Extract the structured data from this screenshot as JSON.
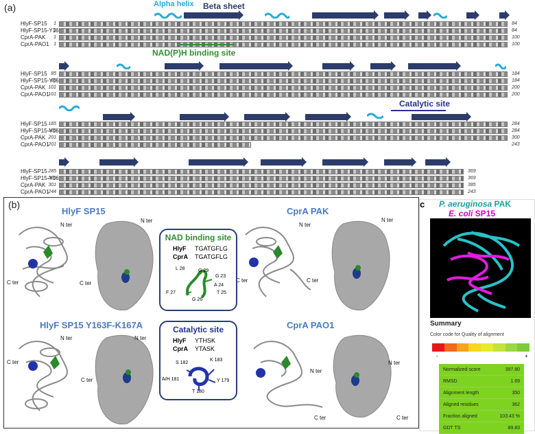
{
  "panel_a": {
    "label": "(a)",
    "headers": {
      "alpha_helix": "Alpha helix",
      "beta_sheet": "Beta sheet",
      "nad_binding": "NAD(P)H binding site",
      "catalytic": "Catalytic site"
    },
    "blocks": [
      {
        "rows": [
          {
            "name": "HlyF-SP15",
            "start": "1",
            "end": "84"
          },
          {
            "name": "HlyF-SP15-Y163F-K167A",
            "start": "1",
            "end": "84"
          },
          {
            "name": "CprA-PAK",
            "start": "1",
            "end": "100"
          },
          {
            "name": "CprA-PAO1",
            "start": "1",
            "end": "100"
          }
        ]
      },
      {
        "rows": [
          {
            "name": "HlyF-SP15",
            "start": "85",
            "end": "184"
          },
          {
            "name": "HlyF-SP15-Y163F-K167A",
            "start": "85",
            "end": "184"
          },
          {
            "name": "CprA-PAK",
            "start": "101",
            "end": "200"
          },
          {
            "name": "CprA-PAO1",
            "start": "101",
            "end": "200"
          }
        ]
      },
      {
        "rows": [
          {
            "name": "HlyF-SP15",
            "start": "185",
            "end": "284"
          },
          {
            "name": "HlyF-SP15-Y163F-K167A",
            "start": "185",
            "end": "284"
          },
          {
            "name": "CprA-PAK",
            "start": "201",
            "end": "300"
          },
          {
            "name": "CprA-PAO1",
            "start": "201",
            "end": "243"
          }
        ]
      },
      {
        "rows": [
          {
            "name": "HlyF-SP15",
            "start": "285",
            "end": "369"
          },
          {
            "name": "HlyF-SP15-Y163F-K167A",
            "start": "285",
            "end": "369"
          },
          {
            "name": "CprA-PAK",
            "start": "301",
            "end": "385"
          },
          {
            "name": "CprA-PAO1",
            "start": "244",
            "end": "243"
          }
        ]
      }
    ]
  },
  "panel_b": {
    "label": "(b)",
    "titles": {
      "hlyf": "HlyF SP15",
      "cpra_pak": "CprA PAK",
      "hlyf_mut": "HlyF SP15 Y163F-K167A",
      "cpra_pao1": "CprA PAO1"
    },
    "ter": {
      "n": "N ter",
      "c": "C ter"
    },
    "nad_box": {
      "title": "NAD binding site",
      "hlyf_label": "HlyF",
      "hlyf_seq": "TGATGFLG",
      "cpra_label": "CprA",
      "cpra_seq": "TGATGFLG",
      "residues": [
        "L 28",
        "G 29",
        "G 23",
        "A 24",
        "F 27",
        "G 26",
        "T 25"
      ]
    },
    "cat_box": {
      "title": "Catalytic site",
      "hlyf_label": "HlyF",
      "hlyf_seq": "YTHSK",
      "cpra_label": "CprA",
      "cpra_seq": "YTASK",
      "residues": [
        "S 182",
        "K 183",
        "A/H 181",
        "Y 179",
        "T 180"
      ]
    }
  },
  "panel_c": {
    "label": "c",
    "title_line1_italic": "P. aeruginosa",
    "title_line1_rest": " PAK",
    "title_line2_italic": "E. coli",
    "title_line2_rest": " SP15",
    "summary_title": "Summary",
    "color_code": "Color code for Quality of alignment",
    "minus": "-",
    "plus": "+",
    "scale_colors": [
      "#e8161b",
      "#f46a1d",
      "#f9a21c",
      "#f9d71c",
      "#e6ec2a",
      "#c3e43a",
      "#9bd742",
      "#7ccb3b"
    ],
    "stats": [
      {
        "label": "Normalized score",
        "value": "397.80"
      },
      {
        "label": "RMSD",
        "value": "1.69"
      },
      {
        "label": "Alignment length",
        "value": "350"
      },
      {
        "label": "Aligned residues",
        "value": "362"
      },
      {
        "label": "Fraction aligned",
        "value": "103.43 %"
      },
      {
        "label": "GDT TS",
        "value": "89.83"
      }
    ]
  }
}
